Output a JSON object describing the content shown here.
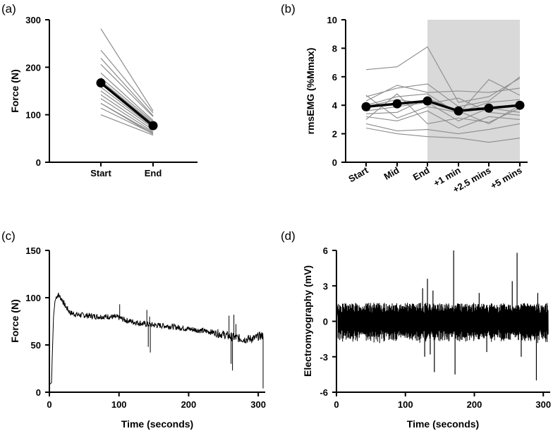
{
  "chart_data": [
    {
      "panel": "(a)",
      "type": "line",
      "categories": [
        "Start",
        "End"
      ],
      "ylabel": "Force (N)",
      "ylim": [
        0,
        300
      ],
      "yticks": [
        0,
        100,
        200,
        300
      ],
      "individual_series": [
        [
          281,
          108
        ],
        [
          236,
          104
        ],
        [
          219,
          98
        ],
        [
          206,
          96
        ],
        [
          188,
          88
        ],
        [
          178,
          85
        ],
        [
          172,
          82
        ],
        [
          166,
          78
        ],
        [
          158,
          74
        ],
        [
          150,
          72
        ],
        [
          142,
          68
        ],
        [
          134,
          64
        ],
        [
          124,
          62
        ],
        [
          114,
          60
        ],
        [
          100,
          57
        ],
        [
          124,
          59
        ]
      ],
      "mean": [
        167,
        77
      ],
      "colors": {
        "individual": "#8c8c8c",
        "mean": "#000000"
      }
    },
    {
      "panel": "(b)",
      "type": "line",
      "categories": [
        "Start",
        "Mid",
        "End",
        "+1 min",
        "+2.5 mins",
        "+5 mins"
      ],
      "ylabel": "rmsEMG (%Mmax)",
      "ylim": [
        0,
        10
      ],
      "yticks": [
        0,
        2,
        4,
        6,
        8,
        10
      ],
      "shaded_region": [
        "End",
        "+5 mins"
      ],
      "individual_series": [
        [
          6.5,
          6.7,
          8.1,
          4.2,
          4.6,
          5.9
        ],
        [
          4.6,
          5.2,
          5.5,
          3.9,
          4.3,
          6.0
        ],
        [
          4.3,
          5.4,
          4.9,
          5.0,
          4.9,
          5.2
        ],
        [
          4.0,
          4.6,
          4.8,
          3.4,
          5.8,
          4.7
        ],
        [
          3.9,
          4.4,
          4.1,
          4.5,
          3.5,
          3.3
        ],
        [
          3.6,
          3.9,
          4.2,
          2.9,
          3.8,
          3.5
        ],
        [
          3.4,
          3.5,
          4.5,
          3.6,
          2.7,
          4.0
        ],
        [
          3.2,
          2.9,
          3.6,
          2.4,
          3.2,
          3.0
        ],
        [
          3.0,
          4.8,
          2.7,
          3.1,
          2.8,
          3.8
        ],
        [
          2.7,
          2.2,
          2.3,
          2.0,
          2.3,
          2.7
        ],
        [
          2.4,
          2.0,
          1.8,
          1.7,
          1.4,
          1.7
        ],
        [
          4.7,
          3.1,
          3.9,
          3.5,
          4.2,
          4.4
        ]
      ],
      "mean": [
        3.9,
        4.1,
        4.3,
        3.6,
        3.8,
        4.0
      ],
      "colors": {
        "individual": "#8c8c8c",
        "mean": "#000000",
        "shade": "#d9d9d9"
      }
    },
    {
      "panel": "(c)",
      "type": "line",
      "xlabel": "Time (seconds)",
      "ylabel": "Force (N)",
      "xlim": [
        0,
        310
      ],
      "ylim": [
        0,
        150
      ],
      "xticks": [
        0,
        100,
        200,
        300
      ],
      "yticks": [
        0,
        50,
        100,
        150
      ],
      "trend_points": [
        [
          0,
          8
        ],
        [
          3,
          10
        ],
        [
          6,
          80
        ],
        [
          8,
          96
        ],
        [
          10,
          101
        ],
        [
          13,
          103
        ],
        [
          18,
          98
        ],
        [
          23,
          91
        ],
        [
          30,
          84
        ],
        [
          40,
          82
        ],
        [
          55,
          81
        ],
        [
          70,
          80
        ],
        [
          85,
          80
        ],
        [
          100,
          79
        ],
        [
          110,
          76
        ],
        [
          130,
          73
        ],
        [
          150,
          71
        ],
        [
          170,
          70
        ],
        [
          190,
          68
        ],
        [
          210,
          66
        ],
        [
          230,
          64
        ],
        [
          250,
          61
        ],
        [
          265,
          58
        ],
        [
          280,
          56
        ],
        [
          295,
          57
        ],
        [
          300,
          59
        ],
        [
          307,
          60
        ]
      ],
      "spikes": [
        [
          101,
          93
        ],
        [
          140,
          87
        ],
        [
          142,
          48
        ],
        [
          144,
          80
        ],
        [
          145,
          42
        ],
        [
          258,
          81
        ],
        [
          261,
          30
        ],
        [
          263,
          23
        ],
        [
          265,
          82
        ],
        [
          268,
          72
        ],
        [
          307,
          4
        ]
      ],
      "color": "#000000"
    },
    {
      "panel": "(d)",
      "type": "line",
      "xlabel": "Time (seconds)",
      "ylabel": "Electromyography (mV)",
      "xlim": [
        0,
        310
      ],
      "ylim": [
        -6,
        6
      ],
      "xticks": [
        0,
        100,
        200,
        300
      ],
      "yticks": [
        -6,
        -3,
        0,
        3,
        6
      ],
      "amplitude_band": 1.3,
      "spikes": [
        [
          125,
          2.8
        ],
        [
          128,
          -3.0
        ],
        [
          132,
          3.6
        ],
        [
          136,
          -2.8
        ],
        [
          140,
          2.6
        ],
        [
          142,
          -4.3
        ],
        [
          170,
          6.0
        ],
        [
          172,
          -4.5
        ],
        [
          207,
          2.4
        ],
        [
          218,
          -2.6
        ],
        [
          255,
          3.4
        ],
        [
          262,
          5.8
        ],
        [
          268,
          -3.0
        ],
        [
          290,
          -5.0
        ],
        [
          292,
          2.4
        ]
      ],
      "color": "#000000"
    }
  ]
}
